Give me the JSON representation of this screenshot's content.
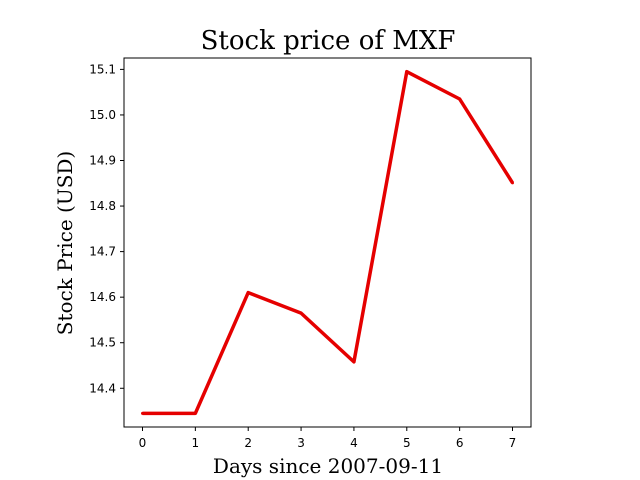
{
  "chart_data": {
    "type": "line",
    "title": "Stock price of MXF",
    "xlabel": "Days since 2007-09-11",
    "ylabel": "Stock Price (USD)",
    "x": [
      0,
      1,
      2,
      3,
      4,
      5,
      6,
      7
    ],
    "series": [
      {
        "values": [
          14.345,
          14.345,
          14.61,
          14.565,
          14.458,
          15.095,
          15.035,
          14.851
        ],
        "color": "#e50000"
      }
    ],
    "xlim": [
      -0.35,
      7.35
    ],
    "ylim": [
      14.315,
      15.125
    ],
    "xticks": [
      0,
      1,
      2,
      3,
      4,
      5,
      6,
      7
    ],
    "xtick_labels": [
      "0",
      "1",
      "2",
      "3",
      "4",
      "5",
      "6",
      "7"
    ],
    "yticks": [
      14.4,
      14.5,
      14.6,
      14.7,
      14.8,
      14.9,
      15.0,
      15.1
    ],
    "ytick_labels": [
      "14.4",
      "14.5",
      "14.6",
      "14.7",
      "14.8",
      "14.9",
      "15.0",
      "15.1"
    ],
    "grid": false,
    "legend": false
  }
}
